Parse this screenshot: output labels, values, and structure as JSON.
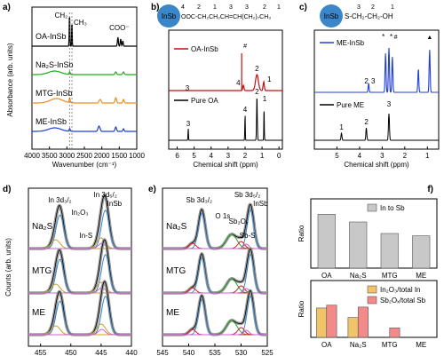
{
  "chart_data": [
    {
      "id": "a",
      "type": "line",
      "panel_label": "a)",
      "xlabel": "Wavenumber (cm⁻¹)",
      "ylabel": "Absorbance (arb. units)",
      "x_ticks": [
        "4000",
        "3500",
        "3000",
        "2500",
        "2000",
        "1500",
        "1000"
      ],
      "xlim": [
        4000,
        1000
      ],
      "annotations": [
        "CH₂",
        "CH₃",
        "COO⁻"
      ],
      "series": [
        {
          "name": "OA-InSb",
          "color": "#000000"
        },
        {
          "name": "Na₂S-InSb",
          "color": "#1aae1a"
        },
        {
          "name": "MTG-InSb",
          "color": "#f28a1f"
        },
        {
          "name": "ME-InSb",
          "color": "#1f3fd6"
        }
      ]
    },
    {
      "id": "b",
      "type": "line",
      "panel_label": "b)",
      "xlabel": "Chemical shift (ppm)",
      "ylabel": "",
      "x_ticks": [
        "6",
        "5",
        "4",
        "3",
        "2",
        "1",
        "0"
      ],
      "xlim": [
        6.5,
        -0.2
      ],
      "molecule_badge": "InSb",
      "molecule_formula": "OOC-CH₂CH₂CH=CH(CH₂)₇CH₃",
      "molecule_numbers": [
        "4",
        "2",
        "1",
        "3",
        "3",
        "2",
        "1"
      ],
      "annotations": [
        "#",
        "1",
        "2",
        "3",
        "4",
        "1",
        "2",
        "3",
        "4"
      ],
      "series": [
        {
          "name": "OA-InSb",
          "color": "#c01010"
        },
        {
          "name": "Pure OA",
          "color": "#000000"
        }
      ]
    },
    {
      "id": "c",
      "type": "line",
      "panel_label": "c)",
      "xlabel": "Chemical shift (ppm)",
      "ylabel": "",
      "x_ticks": [
        "5",
        "4",
        "3",
        "2",
        "1"
      ],
      "xlim": [
        6.0,
        0.5
      ],
      "molecule_badge": "InSb",
      "molecule_formula": "S-CH₂-CH₂-OH",
      "molecule_numbers": [
        "3",
        "2",
        "1"
      ],
      "annotations": [
        "*",
        "*",
        "#",
        "▲",
        "2",
        "3",
        "1",
        "2",
        "3"
      ],
      "series": [
        {
          "name": "ME-InSb",
          "color": "#1f3fd6"
        },
        {
          "name": "Pure ME",
          "color": "#000000"
        }
      ]
    },
    {
      "id": "d",
      "type": "line",
      "panel_label": "d)",
      "xlabel": "Binding energy (eV)",
      "ylabel": "Counts (arb. units)",
      "x_ticks": [
        "455",
        "450",
        "445",
        "440"
      ],
      "xlim": [
        457,
        440
      ],
      "labels": [
        "Na₂S",
        "MTG",
        "ME"
      ],
      "label_colors": [
        "#1aae1a",
        "#f28a1f",
        "#1f3fd6"
      ],
      "annotations": [
        "In 3d₃/₂",
        "In 3d₅/₂",
        "In₂O₃",
        "InSb",
        "In-S"
      ]
    },
    {
      "id": "e",
      "type": "line",
      "panel_label": "e)",
      "xlabel": "Binding energy (eV)",
      "ylabel": "",
      "x_ticks": [
        "545",
        "540",
        "535",
        "530",
        "525"
      ],
      "xlim": [
        545,
        525
      ],
      "labels": [
        "Na₂S",
        "MTG",
        "ME"
      ],
      "label_colors": [
        "#1aae1a",
        "#f28a1f",
        "#1f3fd6"
      ],
      "annotations": [
        "Sb 3d₃/₂",
        "Sb 3d₅/₂",
        "O 1s",
        "Sb₂Oₓ",
        "InSb",
        "Sb-S"
      ]
    },
    {
      "id": "f1",
      "type": "bar",
      "panel_label": "f)",
      "categories": [
        "OA",
        "Na₂S",
        "MTG",
        "ME"
      ],
      "ylabel": "Ratio",
      "series": [
        {
          "name": "In to Sb",
          "color": "#c8c8c8",
          "values": [
            1.5,
            1.4,
            1.25,
            1.22
          ]
        }
      ],
      "ylim": [
        0.8,
        1.7
      ]
    },
    {
      "id": "f2",
      "type": "bar",
      "categories": [
        "OA",
        "Na₂S",
        "MTG",
        "ME"
      ],
      "ylabel": "Ratio",
      "series": [
        {
          "name": "In₂O₃/total In",
          "color": "#f2c46a",
          "values": [
            0.31,
            0.21,
            0,
            0
          ]
        },
        {
          "name": "Sb₂Oₓ/total Sb",
          "color": "#f28a8a",
          "values": [
            0.34,
            0.32,
            0.1,
            0
          ]
        }
      ],
      "ylim": [
        0,
        0.6
      ]
    }
  ]
}
